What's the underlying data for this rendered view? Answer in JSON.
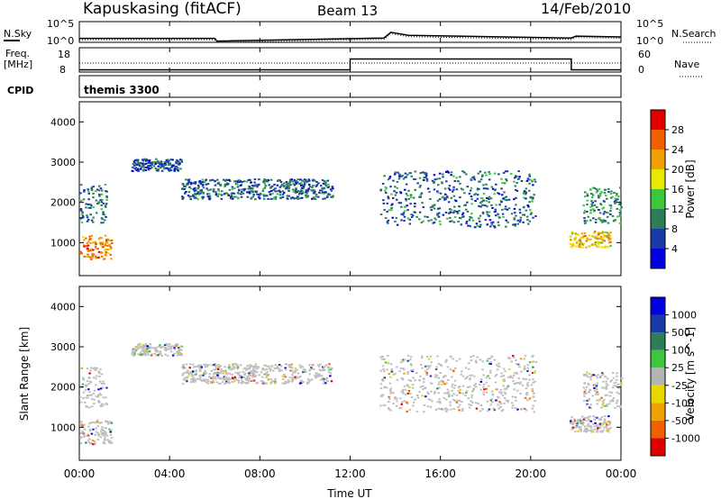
{
  "header": {
    "station": "Kapuskasing (fitACF)",
    "beam": "Beam 13",
    "date": "14/Feb/2010"
  },
  "noise_panel": {
    "left_label": "N.Sky",
    "right_label": "N.Search",
    "left_ticks": [
      "10^5",
      "10^0"
    ],
    "right_ticks": [
      "10^5",
      "10^0"
    ]
  },
  "freq_panel": {
    "left_label_1": "Freq.",
    "left_label_2": "[MHz]",
    "right_label": "Nave",
    "left_ticks": [
      "18",
      "8"
    ],
    "right_ticks": [
      "60",
      "0"
    ]
  },
  "cpid_panel": {
    "label": "CPID",
    "program": "themis 3300"
  },
  "time_axis": {
    "label": "Time UT",
    "ticks": [
      "00:00",
      "04:00",
      "08:00",
      "12:00",
      "16:00",
      "20:00",
      "00:00"
    ]
  },
  "colors": {
    "ground_scatter": "#c0c0c0",
    "power_scale": [
      "#0000e0",
      "#1a3aa8",
      "#2e7d5a",
      "#3cc83c",
      "#e8e800",
      "#f0a000",
      "#f06000",
      "#e00000"
    ],
    "velocity_scale": [
      "#0000e0",
      "#1a3aa8",
      "#2e7d5a",
      "#3cc83c",
      "#b4b4b4",
      "#e8d800",
      "#f0a000",
      "#f06000",
      "#e00000"
    ]
  },
  "chart_data": [
    {
      "type": "line",
      "panel": "noise",
      "series": [
        {
          "name": "N.Sky",
          "style": "solid"
        },
        {
          "name": "N.Search",
          "style": "dotted"
        }
      ],
      "x": [
        0,
        6,
        6.1,
        13.5,
        13.8,
        14.6,
        21.8,
        22.0,
        24
      ],
      "y_sky_log10": [
        0.8,
        0.8,
        0.1,
        0.9,
        2.4,
        1.6,
        0.9,
        1.4,
        1.2
      ],
      "ylim_log10": [
        0,
        5
      ]
    },
    {
      "type": "line",
      "panel": "frequency",
      "series": [
        {
          "name": "Freq.",
          "style": "solid"
        },
        {
          "name": "Nave",
          "style": "dotted"
        }
      ],
      "x": [
        0,
        12,
        12,
        21.8,
        21.8,
        24
      ],
      "freq_mhz": [
        8.6,
        8.6,
        13.4,
        13.4,
        8.6,
        8.6
      ],
      "ylim": [
        8,
        18
      ]
    },
    {
      "type": "heatmap",
      "panel": "power",
      "ylabel": "Slant Range [km]",
      "xlabel": "",
      "colorbar_label": "Power [dB]",
      "xlim": [
        0,
        24
      ],
      "ylim": [
        180,
        4500
      ],
      "y_ticks": [
        1000,
        2000,
        3000,
        4000
      ],
      "colorbar_ticks": [
        4,
        8,
        12,
        16,
        20,
        24,
        28
      ],
      "colorbar_range": [
        0,
        30
      ],
      "scatter_regions": [
        {
          "t": [
            0.0,
            1.4
          ],
          "r": [
            600,
            1200
          ],
          "db": 24
        },
        {
          "t": [
            0.0,
            1.2
          ],
          "r": [
            1500,
            2500
          ],
          "db": 9
        },
        {
          "t": [
            2.3,
            4.5
          ],
          "r": [
            2800,
            3100
          ],
          "db": 7
        },
        {
          "t": [
            4.5,
            11.2
          ],
          "r": [
            2100,
            2600
          ],
          "db": 8
        },
        {
          "t": [
            13.3,
            20.2
          ],
          "r": [
            1400,
            2800
          ],
          "db": 8
        },
        {
          "t": [
            21.7,
            23.5
          ],
          "r": [
            900,
            1300
          ],
          "db": 20
        },
        {
          "t": [
            22.3,
            24.0
          ],
          "r": [
            1500,
            2400
          ],
          "db": 11
        }
      ]
    },
    {
      "type": "heatmap",
      "panel": "velocity",
      "ylabel": "Slant Range [km]",
      "xlabel": "Time UT",
      "colorbar_label": "Velocity [m s^-1]",
      "xlim": [
        0,
        24
      ],
      "ylim": [
        180,
        4500
      ],
      "y_ticks": [
        1000,
        2000,
        3000,
        4000
      ],
      "colorbar_ticks": [
        1000,
        500,
        100,
        25,
        -25,
        -100,
        -500,
        -1000
      ],
      "scatter_regions": [
        {
          "t": [
            0.0,
            1.4
          ],
          "r": [
            600,
            1200
          ],
          "vel": 0
        },
        {
          "t": [
            0.0,
            1.2
          ],
          "r": [
            1500,
            2500
          ],
          "vel": 0
        },
        {
          "t": [
            2.3,
            4.5
          ],
          "r": [
            2800,
            3100
          ],
          "vel": 0
        },
        {
          "t": [
            4.5,
            11.2
          ],
          "r": [
            2100,
            2600
          ],
          "vel": 0
        },
        {
          "t": [
            13.3,
            20.2
          ],
          "r": [
            1400,
            2800
          ],
          "vel": 0
        },
        {
          "t": [
            21.7,
            23.5
          ],
          "r": [
            900,
            1300
          ],
          "vel": 0
        },
        {
          "t": [
            22.3,
            24.0
          ],
          "r": [
            1500,
            2400
          ],
          "vel": 0
        }
      ]
    }
  ]
}
